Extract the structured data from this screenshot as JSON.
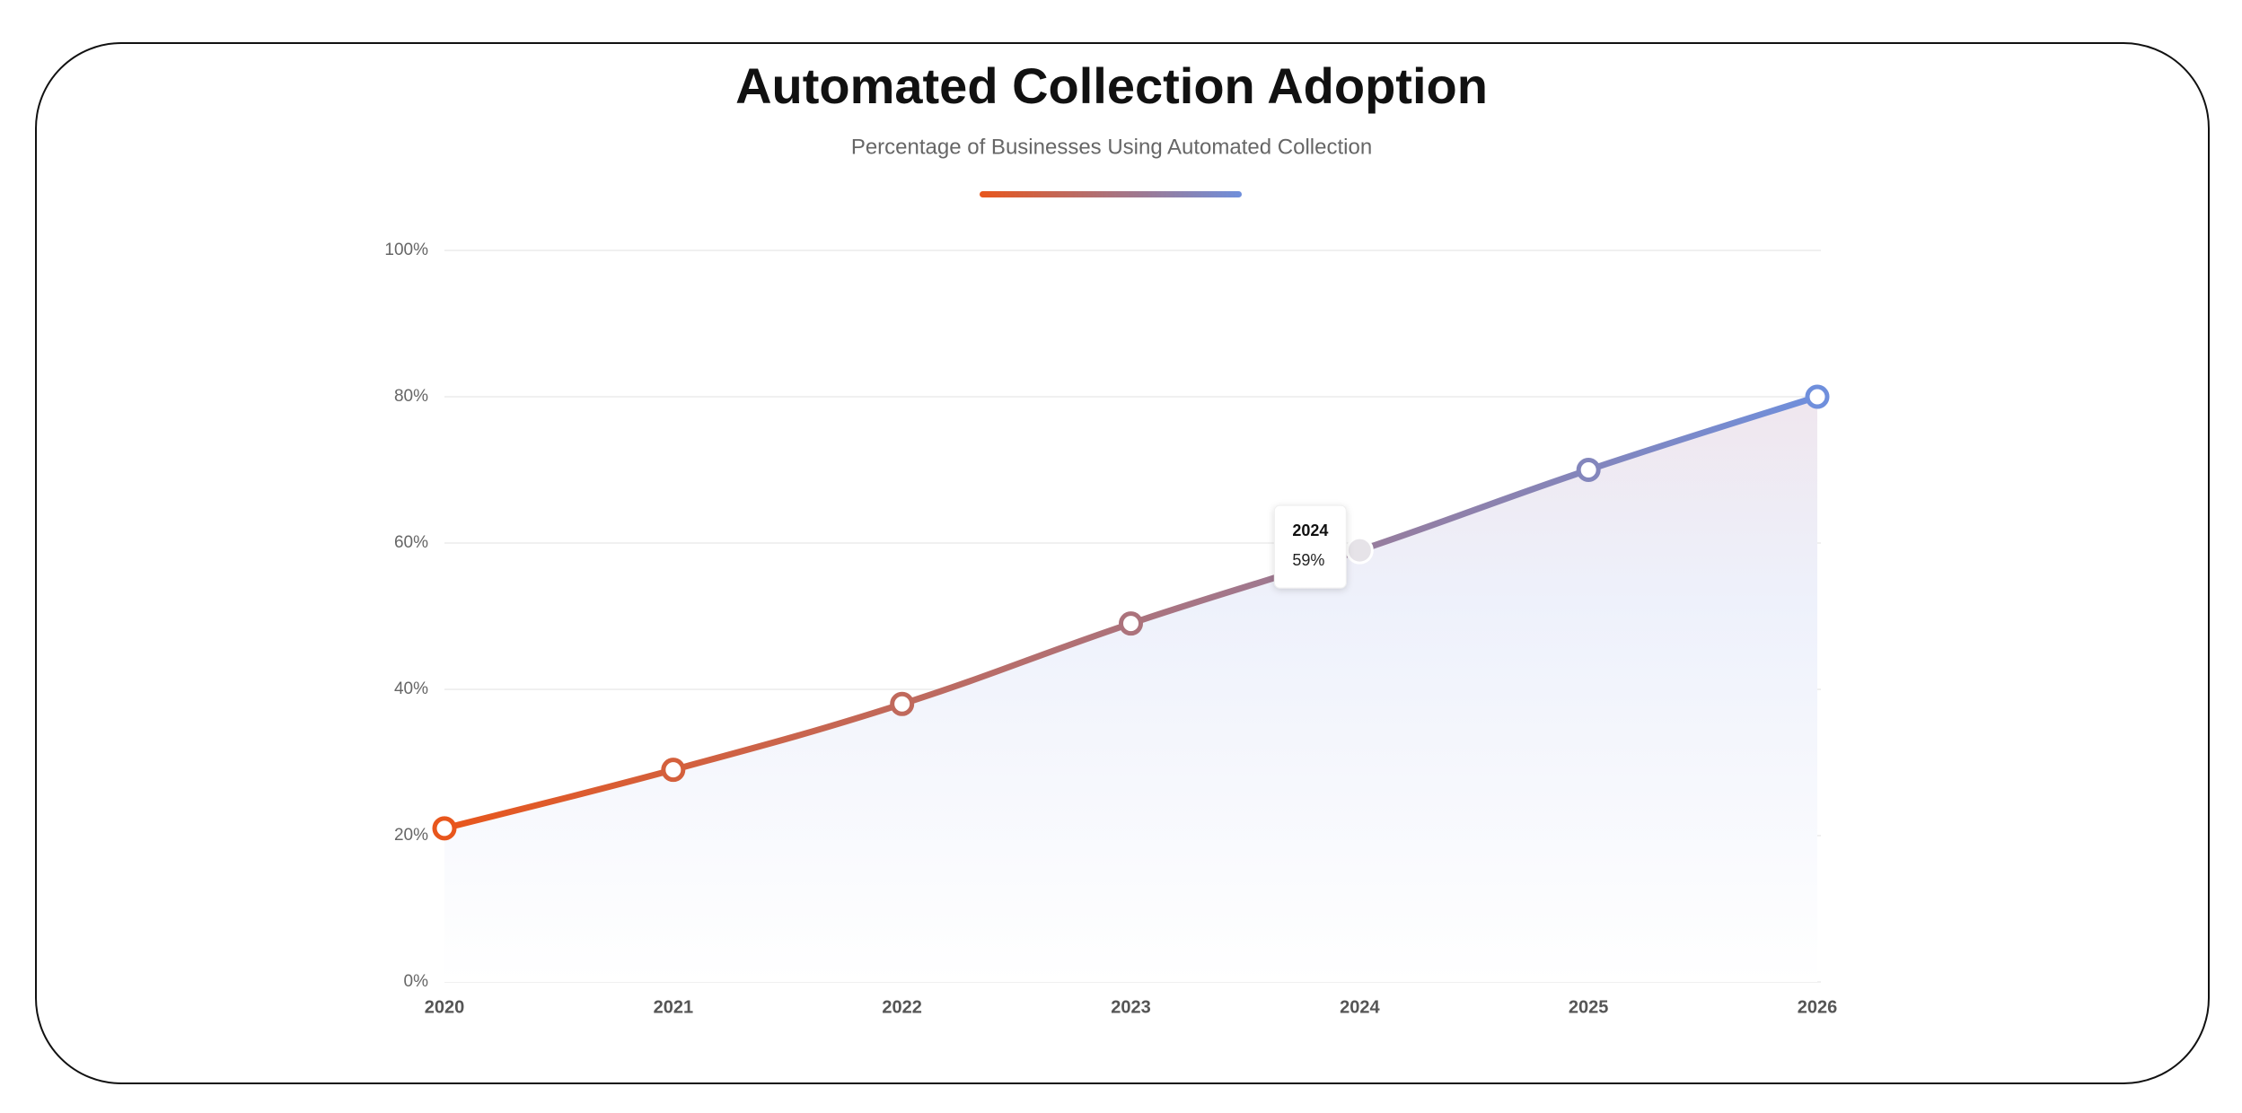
{
  "chart_data": {
    "type": "line",
    "title": "Automated Collection Adoption",
    "subtitle": "Percentage of Businesses Using Automated Collection",
    "categories": [
      "2020",
      "2021",
      "2022",
      "2023",
      "2024",
      "2025",
      "2026"
    ],
    "values": [
      21,
      29,
      38,
      49,
      59,
      70,
      80
    ],
    "value_labels": [
      null,
      null,
      null,
      null,
      "59%",
      null,
      null
    ],
    "colors": [
      "#e8561c",
      "#6f8fdc"
    ],
    "ylim": [
      0,
      100
    ],
    "yticks": [
      {
        "value": 0,
        "label": "0%"
      },
      {
        "value": 20,
        "label": "20%"
      },
      {
        "value": 40,
        "label": "40%"
      },
      {
        "value": 60,
        "label": "60%"
      },
      {
        "value": 80,
        "label": "80%"
      },
      {
        "value": 100,
        "label": "100%"
      }
    ],
    "grid": true
  }
}
